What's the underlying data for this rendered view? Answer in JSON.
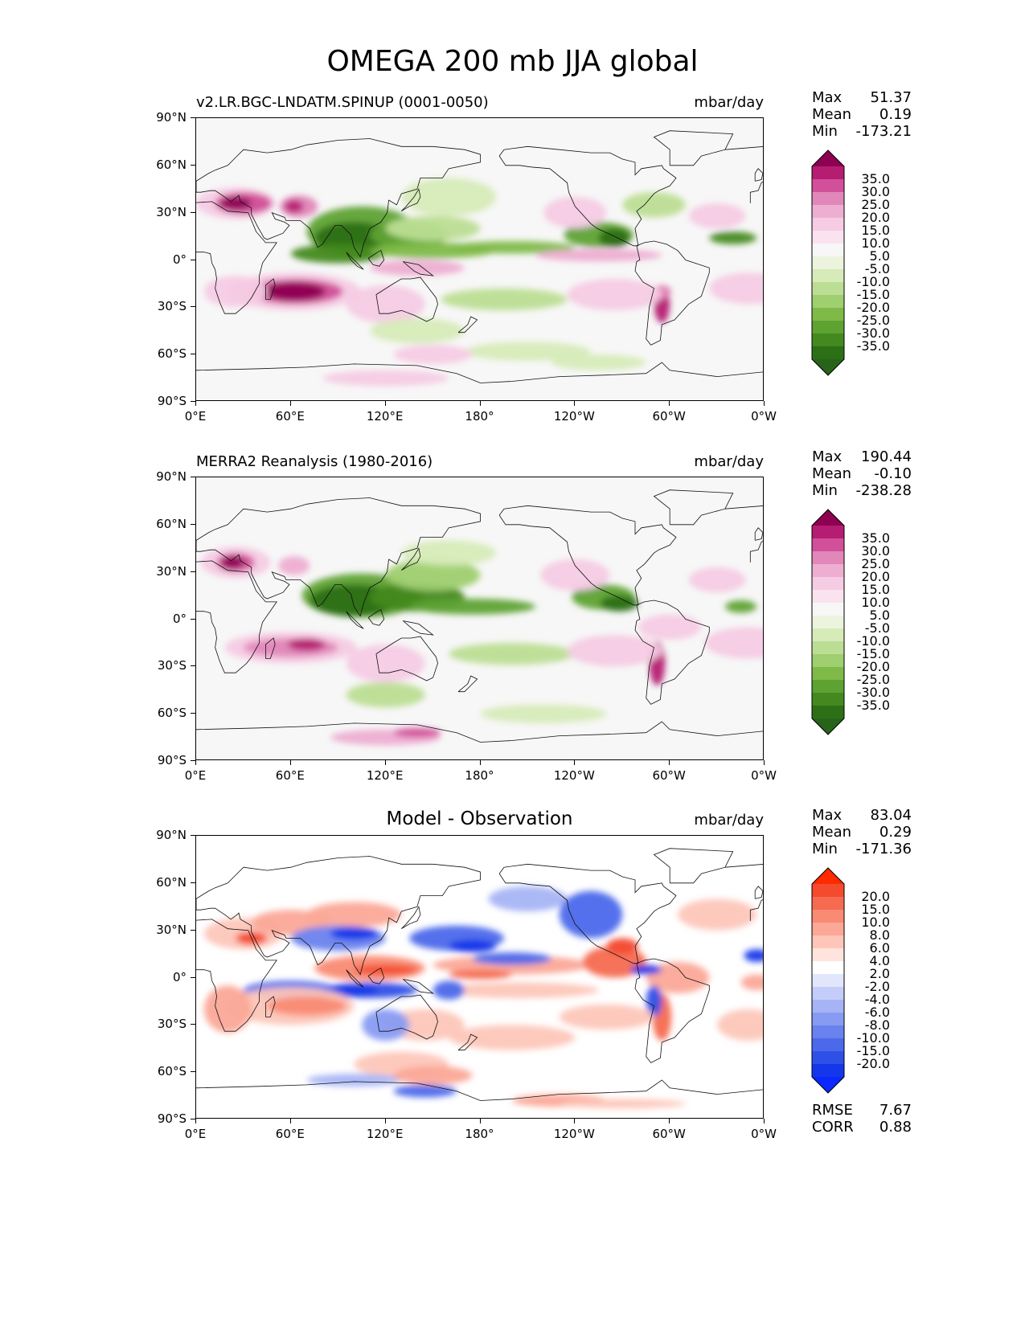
{
  "figure": {
    "title": "OMEGA 200 mb JJA global"
  },
  "lat_ticks": [
    "90°N",
    "60°N",
    "30°N",
    "0°",
    "30°S",
    "60°S",
    "90°S"
  ],
  "lon_ticks": [
    "0°E",
    "60°E",
    "120°E",
    "180°",
    "120°W",
    "60°W",
    "0°W"
  ],
  "panels": [
    {
      "title": "v2.LR.BGC-LNDATM.SPINUP (0001-0050)",
      "units": "mbar/day",
      "stats": {
        "max_label": "Max",
        "max": "51.37",
        "mean_label": "Mean",
        "mean": "0.19",
        "min_label": "Min",
        "min": "-173.21"
      },
      "colorbar": {
        "labels": [
          "35.0",
          "30.0",
          "25.0",
          "20.0",
          "15.0",
          "10.0",
          "5.0",
          "-5.0",
          "-10.0",
          "-15.0",
          "-20.0",
          "-25.0",
          "-30.0",
          "-35.0"
        ],
        "colors": [
          "#8e0152",
          "#b51d72",
          "#d24f99",
          "#e287b9",
          "#eeaed2",
          "#f6cbe4",
          "#fae2ef",
          "#f7f7f7",
          "#ecf4de",
          "#d6ebb8",
          "#bcde94",
          "#9fcf6f",
          "#7fba48",
          "#5ea232",
          "#43891f",
          "#2d6f17",
          "#276419"
        ]
      }
    },
    {
      "title": "MERRA2 Reanalysis (1980-2016)",
      "units": "mbar/day",
      "stats": {
        "max_label": "Max",
        "max": "190.44",
        "mean_label": "Mean",
        "mean": "-0.10",
        "min_label": "Min",
        "min": "-238.28"
      },
      "colorbar": {
        "labels": [
          "35.0",
          "30.0",
          "25.0",
          "20.0",
          "15.0",
          "10.0",
          "5.0",
          "-5.0",
          "-10.0",
          "-15.0",
          "-20.0",
          "-25.0",
          "-30.0",
          "-35.0"
        ],
        "colors": [
          "#8e0152",
          "#b51d72",
          "#d24f99",
          "#e287b9",
          "#eeaed2",
          "#f6cbe4",
          "#fae2ef",
          "#f7f7f7",
          "#ecf4de",
          "#d6ebb8",
          "#bcde94",
          "#9fcf6f",
          "#7fba48",
          "#5ea232",
          "#43891f",
          "#2d6f17",
          "#276419"
        ]
      }
    },
    {
      "title": "Model - Observation",
      "units": "mbar/day",
      "stats": {
        "max_label": "Max",
        "max": "83.04",
        "mean_label": "Mean",
        "mean": "0.29",
        "min_label": "Min",
        "min": "-171.36",
        "rmse_label": "RMSE",
        "rmse": "7.67",
        "corr_label": "CORR",
        "corr": "0.88"
      },
      "colorbar": {
        "labels": [
          "20.0",
          "15.0",
          "10.0",
          "8.0",
          "6.0",
          "4.0",
          "2.0",
          "-2.0",
          "-4.0",
          "-6.0",
          "-8.0",
          "-10.0",
          "-15.0",
          "-20.0"
        ],
        "colors": [
          "#ff2a00",
          "#f44a2e",
          "#f66a50",
          "#f98a73",
          "#fba897",
          "#fdc6b9",
          "#fee4dc",
          "#ffffff",
          "#e2e6fd",
          "#c4cdf9",
          "#a6b4f5",
          "#889bf2",
          "#6a82ee",
          "#4c69eb",
          "#2e50e7",
          "#1437ea",
          "#0a28ff"
        ]
      }
    }
  ],
  "colors": {
    "model_pos_strong": "#8e0152",
    "model_pos_weak": "#f6cbe4",
    "model_neg_strong": "#276419",
    "model_neg_weak": "#d6ebb8",
    "diff_pos": "#f44a2e",
    "diff_neg": "#2e50e7",
    "ocean_bg": "#f7f7f7"
  }
}
